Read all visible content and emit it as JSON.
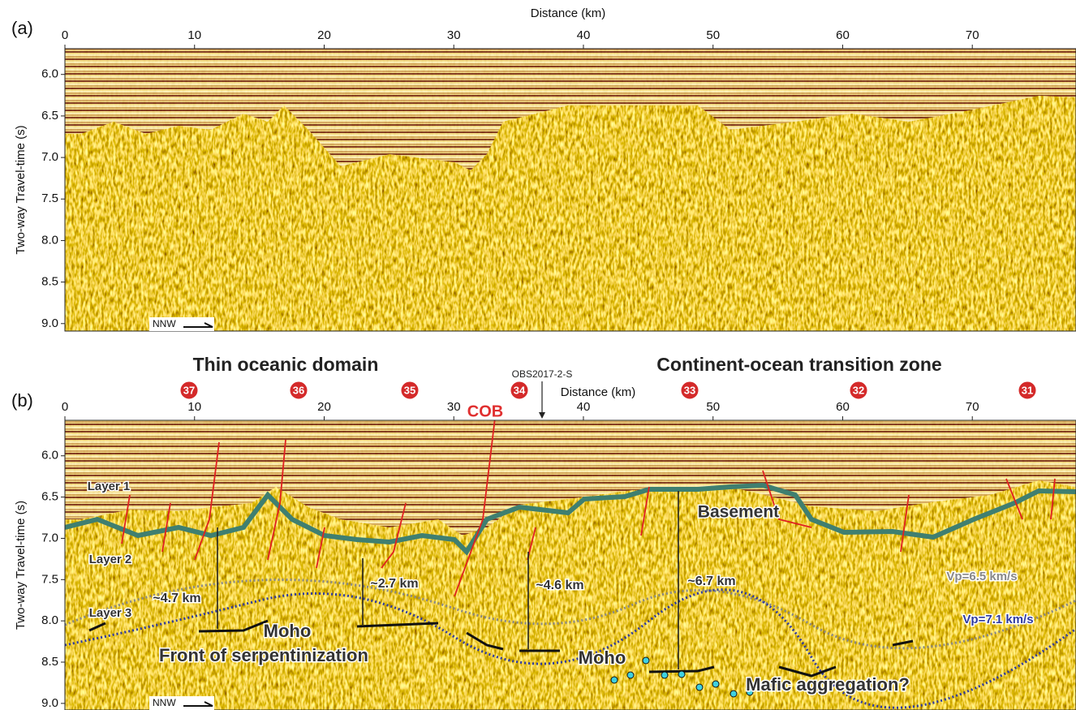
{
  "chart_data": [
    {
      "type": "seismic",
      "panel_label": "(a)",
      "xlabel": "Distance (km)",
      "ylabel": "Two-way Travel-time (s)",
      "xlim": [
        0,
        78
      ],
      "ylim": [
        5.69,
        9.09
      ],
      "xticks": [
        0,
        10,
        20,
        30,
        40,
        50,
        60,
        70
      ],
      "yticks": [
        {
          "value": 6,
          "label": "6.0"
        },
        {
          "value": 6.5,
          "label": "6.5"
        },
        {
          "value": 7,
          "label": "7.0"
        },
        {
          "value": 7.5,
          "label": "7.5"
        },
        {
          "value": 8,
          "label": "8.0"
        },
        {
          "value": 8.5,
          "label": "8.5"
        },
        {
          "value": 9,
          "label": "9.0"
        }
      ],
      "direction": "NNW"
    },
    {
      "type": "seismic",
      "panel_label": "(b)",
      "xlabel": "Distance (km)",
      "ylabel": "Two-way Travel-time (s)",
      "xlim": [
        0,
        78
      ],
      "ylim": [
        5.57,
        9.08
      ],
      "xticks": [
        0,
        10,
        20,
        30,
        40,
        50,
        60,
        70
      ],
      "yticks": [
        {
          "value": 6,
          "label": "6.0"
        },
        {
          "value": 6.5,
          "label": "6.5"
        },
        {
          "value": 7,
          "label": "7.0"
        },
        {
          "value": 7.5,
          "label": "7.5"
        },
        {
          "value": 8,
          "label": "8.0"
        },
        {
          "value": 8.5,
          "label": "8.5"
        },
        {
          "value": 9,
          "label": "9.0"
        }
      ],
      "direction": "NNW",
      "domains": [
        "Thin oceanic domain",
        "Continent-ocean transition zone"
      ],
      "obs_label": "OBS2017-2-S",
      "cob": "COB",
      "stations": [
        "37",
        "36",
        "35",
        "34",
        "33",
        "32",
        "31"
      ],
      "annotations": [
        "Layer 1",
        "Basement",
        "Layer 2",
        "~4.7 km",
        "~2.7 km",
        "~4.6 km",
        "~6.7 km",
        "Vp=6.5 km/s",
        "Vp=7.1 km/s",
        "Layer 3",
        "Moho",
        "Front of serpentinization",
        "Moho",
        "Mafic aggregation?"
      ]
    }
  ]
}
